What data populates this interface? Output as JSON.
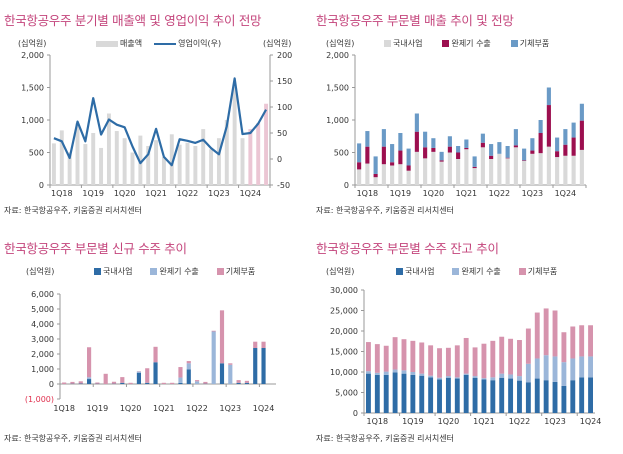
{
  "colors": {
    "title": "#c4457c",
    "grey": "#d9d9d9",
    "pink_forecast": "#ebc6d4",
    "line_blue": "#2e6ca6",
    "wine": "#9c0f4f",
    "steel_blue": "#6a9ac6",
    "dark_blue": "#2e6ca6",
    "light_blue": "#9bb6d9",
    "rose": "#d693ad",
    "negative_label": "#e0304e"
  },
  "chart_data": [
    {
      "id": "c1",
      "type": "bar+line",
      "title": "한국항공우주 분기별 매출액 및 영업이익 추이 전망",
      "ylabel": "(십억원)",
      "y2label": "(십억원)",
      "ylim": [
        0,
        2000
      ],
      "yticks": [
        0,
        500,
        1000,
        1500,
        2000
      ],
      "ytick_labels": [
        "0",
        "500",
        "1,000",
        "1,500",
        "2,000"
      ],
      "y2lim": [
        -50,
        200
      ],
      "y2ticks": [
        -50,
        0,
        50,
        100,
        150,
        200
      ],
      "y2tick_labels": [
        "-50",
        "0",
        "50",
        "100",
        "150",
        "200"
      ],
      "legend": [
        "매출액",
        "영업이익(우)"
      ],
      "legend_position": "top",
      "categories": [
        "1Q18",
        "2Q18",
        "3Q18",
        "4Q18",
        "1Q19",
        "2Q19",
        "3Q19",
        "4Q19",
        "1Q20",
        "2Q20",
        "3Q20",
        "4Q20",
        "1Q21",
        "2Q21",
        "3Q21",
        "4Q21",
        "1Q22",
        "2Q22",
        "3Q22",
        "4Q22",
        "1Q23",
        "2Q23",
        "3Q23",
        "4Q23",
        "1Q24",
        "2Q24",
        "3Q24",
        "4Q24"
      ],
      "xtick_labels": [
        "1Q18",
        "1Q19",
        "1Q20",
        "1Q21",
        "1Q22",
        "1Q23",
        "1Q24"
      ],
      "forecast_from_index": 25,
      "series": [
        {
          "name": "매출액",
          "type": "bar",
          "values": [
            640,
            840,
            500,
            950,
            630,
            800,
            570,
            1100,
            830,
            720,
            500,
            760,
            600,
            690,
            430,
            780,
            620,
            650,
            600,
            860,
            550,
            720,
            1000,
            1510,
            720,
            860,
            950,
            1250
          ]
        },
        {
          "name": "영업이익(우)",
          "type": "line",
          "values": [
            40,
            34,
            2,
            72,
            34,
            117,
            47,
            76,
            66,
            61,
            24,
            -8,
            9,
            58,
            4,
            -12,
            38,
            35,
            31,
            37,
            21,
            9,
            63,
            155,
            48,
            50,
            68,
            95
          ]
        }
      ],
      "source": "자료: 한국항공우주, 키움증권 리서치센터"
    },
    {
      "id": "c2",
      "type": "stacked-bar",
      "title": "한국항공우주 부문별 매출 추이 및 전망",
      "ylabel": "(십억원)",
      "ylim": [
        0,
        2000
      ],
      "yticks": [
        0,
        500,
        1000,
        1500,
        2000
      ],
      "ytick_labels": [
        "0",
        "500",
        "1,000",
        "1,500",
        "2,000"
      ],
      "legend": [
        "국내사업",
        "완제기 수출",
        "기체부품"
      ],
      "legend_position": "top",
      "categories": [
        "1Q18",
        "2Q18",
        "3Q18",
        "4Q18",
        "1Q19",
        "2Q19",
        "3Q19",
        "4Q19",
        "1Q20",
        "2Q20",
        "3Q20",
        "4Q20",
        "1Q21",
        "2Q21",
        "3Q21",
        "4Q21",
        "1Q22",
        "2Q22",
        "3Q22",
        "4Q22",
        "1Q23",
        "2Q23",
        "3Q23",
        "4Q23",
        "1Q24",
        "2Q24",
        "3Q24",
        "4Q24"
      ],
      "xtick_labels": [
        "1Q18",
        "1Q19",
        "1Q20",
        "1Q21",
        "1Q22",
        "1Q23",
        "1Q24"
      ],
      "series": [
        {
          "name": "국내사업",
          "values": [
            240,
            330,
            120,
            320,
            300,
            320,
            220,
            510,
            410,
            510,
            360,
            500,
            400,
            550,
            260,
            580,
            400,
            480,
            410,
            580,
            370,
            480,
            490,
            590,
            430,
            450,
            450,
            540
          ]
        },
        {
          "name": "완제기 수출",
          "values": [
            110,
            260,
            50,
            270,
            50,
            210,
            80,
            310,
            170,
            60,
            20,
            90,
            100,
            20,
            20,
            70,
            50,
            0,
            10,
            30,
            10,
            50,
            310,
            640,
            90,
            170,
            280,
            450
          ]
        },
        {
          "name": "기체부품",
          "values": [
            290,
            240,
            270,
            270,
            280,
            270,
            260,
            280,
            240,
            150,
            130,
            160,
            100,
            130,
            160,
            140,
            180,
            180,
            180,
            250,
            180,
            190,
            200,
            270,
            210,
            240,
            230,
            260
          ]
        }
      ],
      "source": "자료: 한국항공우주, 키움증권 리서치센터"
    },
    {
      "id": "c3",
      "type": "stacked-bar",
      "title": "한국항공우주 부문별 신규 수주 추이",
      "ylabel": "(십억원)",
      "ylim": [
        -1000,
        6000
      ],
      "yticks": [
        -1000,
        0,
        1000,
        2000,
        3000,
        4000,
        5000,
        6000
      ],
      "ytick_labels": [
        "(1,000)",
        "0",
        "1,000",
        "2,000",
        "3,000",
        "4,000",
        "5,000",
        "6,000"
      ],
      "legend": [
        "국내사업",
        "완제기 수출",
        "기체부품"
      ],
      "legend_position": "top",
      "categories": [
        "1Q18",
        "2Q18",
        "3Q18",
        "4Q18",
        "1Q19",
        "2Q19",
        "3Q19",
        "4Q19",
        "1Q20",
        "2Q20",
        "3Q20",
        "4Q20",
        "1Q21",
        "2Q21",
        "3Q21",
        "4Q21",
        "1Q22",
        "2Q22",
        "3Q22",
        "4Q22",
        "1Q23",
        "2Q23",
        "3Q23",
        "4Q23",
        "1Q24",
        "2Q24"
      ],
      "xtick_labels": [
        "1Q18",
        "1Q19",
        "1Q20",
        "1Q21",
        "1Q22",
        "1Q23",
        "1Q24"
      ],
      "series": [
        {
          "name": "국내사업",
          "values": [
            0,
            20,
            30,
            330,
            20,
            0,
            20,
            80,
            0,
            750,
            80,
            1450,
            0,
            0,
            80,
            980,
            0,
            20,
            0,
            1380,
            0,
            80,
            80,
            2400,
            2400,
            0
          ]
        },
        {
          "name": "완제기 수출",
          "values": [
            0,
            0,
            0,
            120,
            0,
            0,
            0,
            0,
            0,
            80,
            0,
            0,
            0,
            0,
            350,
            400,
            180,
            0,
            3500,
            0,
            1280,
            0,
            0,
            0,
            0,
            0
          ]
        },
        {
          "name": "기체부품",
          "values": [
            100,
            120,
            150,
            2000,
            80,
            680,
            130,
            380,
            80,
            20,
            970,
            1030,
            80,
            80,
            700,
            150,
            80,
            120,
            50,
            3530,
            100,
            180,
            130,
            420,
            420,
            0
          ]
        }
      ],
      "source": "자료: 한국항공우주, 키움증권 리서치센터"
    },
    {
      "id": "c4",
      "type": "stacked-bar",
      "title": "한국항공우주 부문별 수주 잔고 추이",
      "ylabel": "(십억원)",
      "ylim": [
        0,
        30000
      ],
      "yticks": [
        0,
        5000,
        10000,
        15000,
        20000,
        25000,
        30000
      ],
      "ytick_labels": [
        "0",
        "5,000",
        "10,000",
        "15,000",
        "20,000",
        "25,000",
        "30,000"
      ],
      "legend": [
        "국내사업",
        "완제기 수출",
        "기체부품"
      ],
      "legend_position": "top",
      "categories": [
        "1Q18",
        "2Q18",
        "3Q18",
        "4Q18",
        "1Q19",
        "2Q19",
        "3Q19",
        "4Q19",
        "1Q20",
        "2Q20",
        "3Q20",
        "4Q20",
        "1Q21",
        "2Q21",
        "3Q21",
        "4Q21",
        "1Q22",
        "2Q22",
        "3Q22",
        "4Q22",
        "1Q23",
        "2Q23",
        "3Q23",
        "4Q23",
        "1Q24",
        "2Q24"
      ],
      "xtick_labels": [
        "1Q18",
        "1Q19",
        "1Q20",
        "1Q21",
        "1Q22",
        "1Q23",
        "1Q24"
      ],
      "series": [
        {
          "name": "국내사업",
          "values": [
            9600,
            9300,
            9300,
            9900,
            9600,
            9300,
            9100,
            8700,
            8200,
            8600,
            8400,
            9300,
            8600,
            8200,
            8000,
            8600,
            8400,
            7900,
            7500,
            8400,
            8000,
            7600,
            6600,
            8000,
            8700,
            8700
          ]
        },
        {
          "name": "완제기 수출",
          "values": [
            600,
            500,
            800,
            700,
            800,
            700,
            500,
            400,
            400,
            400,
            300,
            300,
            400,
            300,
            700,
            1000,
            1000,
            1100,
            4500,
            4900,
            6100,
            6200,
            5800,
            5300,
            5100,
            5100
          ]
        },
        {
          "name": "기체부품",
          "values": [
            7100,
            7000,
            6300,
            7900,
            7600,
            7600,
            7600,
            7400,
            7200,
            6900,
            7800,
            8700,
            7000,
            8400,
            8900,
            9000,
            8700,
            8800,
            8600,
            11200,
            11400,
            11200,
            7300,
            7800,
            7600,
            7600
          ]
        }
      ],
      "source": "자료: 한국항공우주, 키움증권 리서치센터"
    }
  ]
}
